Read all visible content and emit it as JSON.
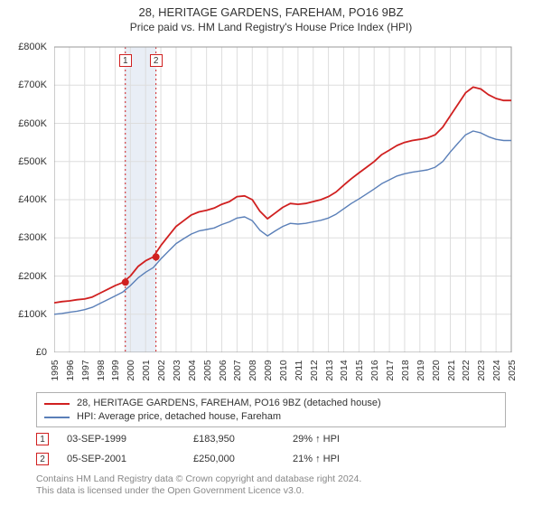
{
  "title": {
    "main": "28, HERITAGE GARDENS, FAREHAM, PO16 9BZ",
    "sub": "Price paid vs. HM Land Registry's House Price Index (HPI)",
    "main_fontsize": 13,
    "sub_fontsize": 12
  },
  "chart": {
    "type": "line",
    "background_color": "#ffffff",
    "grid_color": "#dddddd",
    "axis_color": "#999999",
    "x_years": [
      1995,
      1996,
      1997,
      1998,
      1999,
      2000,
      2001,
      2002,
      2003,
      2004,
      2005,
      2006,
      2007,
      2008,
      2009,
      2010,
      2011,
      2012,
      2013,
      2014,
      2015,
      2016,
      2017,
      2018,
      2019,
      2020,
      2021,
      2022,
      2023,
      2024,
      2025
    ],
    "xlim": [
      1995,
      2025
    ],
    "ylim": [
      0,
      800000
    ],
    "ytick_step": 100000,
    "yticks": [
      "£0",
      "£100K",
      "£200K",
      "£300K",
      "£400K",
      "£500K",
      "£600K",
      "£700K",
      "£800K"
    ],
    "highlight_band": {
      "x0_year": 1999.6,
      "x1_year": 2001.7,
      "fill": "#e9eef6"
    },
    "vertical_dashed": [
      {
        "x_year": 1999.67,
        "color": "#d02020"
      },
      {
        "x_year": 2001.68,
        "color": "#d02020"
      }
    ],
    "marker_boxes": [
      {
        "label": "1",
        "x_year": 1999.67
      },
      {
        "label": "2",
        "x_year": 2001.68
      }
    ],
    "series": [
      {
        "name": "price_paid",
        "color": "#d02020",
        "width": 1.8,
        "points_year_value": [
          [
            1995,
            130000
          ],
          [
            1995.5,
            133000
          ],
          [
            1996,
            135000
          ],
          [
            1996.5,
            138000
          ],
          [
            1997,
            140000
          ],
          [
            1997.5,
            145000
          ],
          [
            1998,
            155000
          ],
          [
            1998.5,
            165000
          ],
          [
            1999,
            175000
          ],
          [
            1999.5,
            183000
          ],
          [
            2000,
            200000
          ],
          [
            2000.5,
            225000
          ],
          [
            2001,
            240000
          ],
          [
            2001.5,
            250000
          ],
          [
            2002,
            280000
          ],
          [
            2002.5,
            305000
          ],
          [
            2003,
            330000
          ],
          [
            2003.5,
            345000
          ],
          [
            2004,
            360000
          ],
          [
            2004.5,
            368000
          ],
          [
            2005,
            372000
          ],
          [
            2005.5,
            378000
          ],
          [
            2006,
            388000
          ],
          [
            2006.5,
            395000
          ],
          [
            2007,
            408000
          ],
          [
            2007.5,
            410000
          ],
          [
            2008,
            400000
          ],
          [
            2008.5,
            370000
          ],
          [
            2009,
            350000
          ],
          [
            2009.5,
            365000
          ],
          [
            2010,
            380000
          ],
          [
            2010.5,
            390000
          ],
          [
            2011,
            388000
          ],
          [
            2011.5,
            390000
          ],
          [
            2012,
            395000
          ],
          [
            2012.5,
            400000
          ],
          [
            2013,
            408000
          ],
          [
            2013.5,
            420000
          ],
          [
            2014,
            438000
          ],
          [
            2014.5,
            455000
          ],
          [
            2015,
            470000
          ],
          [
            2015.5,
            485000
          ],
          [
            2016,
            500000
          ],
          [
            2016.5,
            518000
          ],
          [
            2017,
            530000
          ],
          [
            2017.5,
            542000
          ],
          [
            2018,
            550000
          ],
          [
            2018.5,
            555000
          ],
          [
            2019,
            558000
          ],
          [
            2019.5,
            562000
          ],
          [
            2020,
            570000
          ],
          [
            2020.5,
            590000
          ],
          [
            2021,
            620000
          ],
          [
            2021.5,
            650000
          ],
          [
            2022,
            680000
          ],
          [
            2022.5,
            695000
          ],
          [
            2023,
            690000
          ],
          [
            2023.5,
            675000
          ],
          [
            2024,
            665000
          ],
          [
            2024.5,
            660000
          ],
          [
            2025,
            660000
          ]
        ],
        "markers": [
          {
            "x_year": 1999.67,
            "y_value": 183950
          },
          {
            "x_year": 2001.68,
            "y_value": 250000
          }
        ],
        "marker_fill": "#d02020",
        "marker_radius": 4
      },
      {
        "name": "hpi",
        "color": "#5a7fb8",
        "width": 1.4,
        "points_year_value": [
          [
            1995,
            100000
          ],
          [
            1995.5,
            102000
          ],
          [
            1996,
            105000
          ],
          [
            1996.5,
            108000
          ],
          [
            1997,
            112000
          ],
          [
            1997.5,
            118000
          ],
          [
            1998,
            128000
          ],
          [
            1998.5,
            138000
          ],
          [
            1999,
            148000
          ],
          [
            1999.5,
            158000
          ],
          [
            2000,
            175000
          ],
          [
            2000.5,
            195000
          ],
          [
            2001,
            210000
          ],
          [
            2001.5,
            222000
          ],
          [
            2002,
            245000
          ],
          [
            2002.5,
            265000
          ],
          [
            2003,
            285000
          ],
          [
            2003.5,
            298000
          ],
          [
            2004,
            310000
          ],
          [
            2004.5,
            318000
          ],
          [
            2005,
            322000
          ],
          [
            2005.5,
            326000
          ],
          [
            2006,
            335000
          ],
          [
            2006.5,
            342000
          ],
          [
            2007,
            352000
          ],
          [
            2007.5,
            355000
          ],
          [
            2008,
            345000
          ],
          [
            2008.5,
            320000
          ],
          [
            2009,
            305000
          ],
          [
            2009.5,
            318000
          ],
          [
            2010,
            330000
          ],
          [
            2010.5,
            338000
          ],
          [
            2011,
            336000
          ],
          [
            2011.5,
            338000
          ],
          [
            2012,
            342000
          ],
          [
            2012.5,
            346000
          ],
          [
            2013,
            352000
          ],
          [
            2013.5,
            362000
          ],
          [
            2014,
            376000
          ],
          [
            2014.5,
            390000
          ],
          [
            2015,
            402000
          ],
          [
            2015.5,
            415000
          ],
          [
            2016,
            428000
          ],
          [
            2016.5,
            442000
          ],
          [
            2017,
            452000
          ],
          [
            2017.5,
            462000
          ],
          [
            2018,
            468000
          ],
          [
            2018.5,
            472000
          ],
          [
            2019,
            475000
          ],
          [
            2019.5,
            478000
          ],
          [
            2020,
            485000
          ],
          [
            2020.5,
            500000
          ],
          [
            2021,
            525000
          ],
          [
            2021.5,
            548000
          ],
          [
            2022,
            570000
          ],
          [
            2022.5,
            580000
          ],
          [
            2023,
            575000
          ],
          [
            2023.5,
            565000
          ],
          [
            2024,
            558000
          ],
          [
            2024.5,
            555000
          ],
          [
            2025,
            555000
          ]
        ]
      }
    ]
  },
  "legend": {
    "items": [
      {
        "color": "#d02020",
        "label": "28, HERITAGE GARDENS, FAREHAM, PO16 9BZ (detached house)"
      },
      {
        "color": "#5a7fb8",
        "label": "HPI: Average price, detached house, Fareham"
      }
    ],
    "border_color": "#b0b0b0",
    "fontsize": 11
  },
  "transactions": [
    {
      "marker": "1",
      "date": "03-SEP-1999",
      "price": "£183,950",
      "change": "29% ↑ HPI"
    },
    {
      "marker": "2",
      "date": "05-SEP-2001",
      "price": "£250,000",
      "change": "21% ↑ HPI"
    }
  ],
  "footer": {
    "line1": "Contains HM Land Registry data © Crown copyright and database right 2024.",
    "line2": "This data is licensed under the Open Government Licence v3.0.",
    "color": "#888888",
    "fontsize": 10.5
  },
  "colors": {
    "marker_border": "#d02020"
  }
}
